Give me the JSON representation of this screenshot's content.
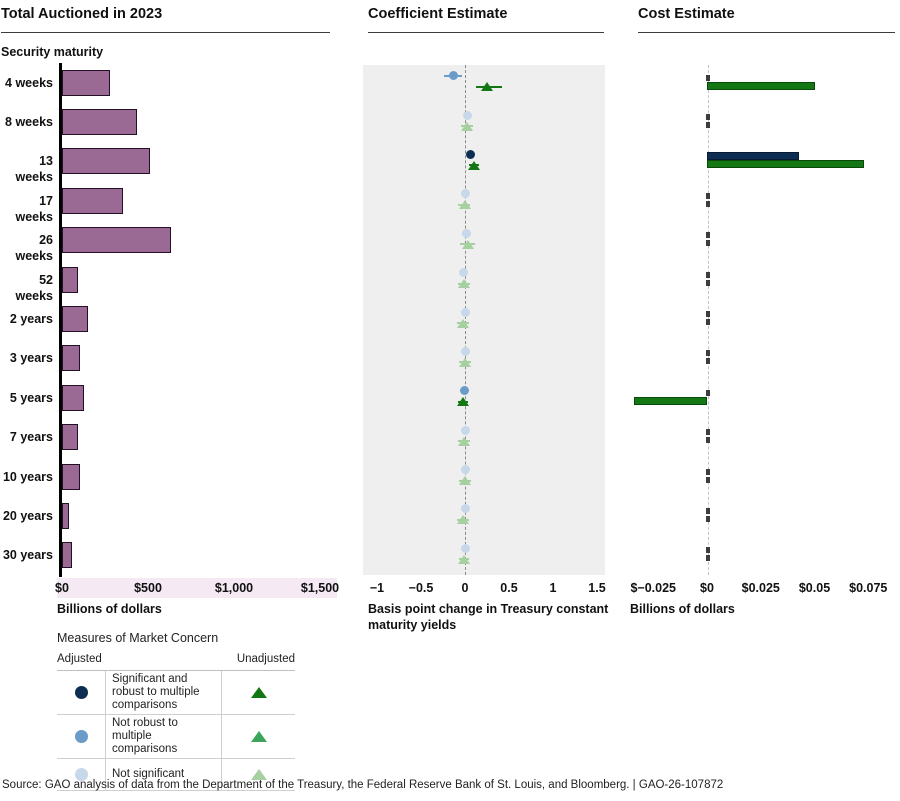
{
  "source": "Source: GAO analysis of data from the Department of the Treasury, the Federal Reserve Bank of St. Louis, and Bloomberg.  |  GAO-26-107872",
  "colors": {
    "bar_purple": "#9a6a94",
    "bar_purple_border": "#241026",
    "axis_band_pink": "#f5e9f3",
    "plot_bg": "#efefef",
    "zero_line_gray": "#8a8a8a",
    "zero_line_light": "#c2c2c2",
    "zero_tick_dark": "#3d3d3d",
    "adjusted_significant": "#0d2d52",
    "adjusted_not_robust": "#6b9bc8",
    "adjusted_not_significant": "#c6d8ea",
    "unadjusted_significant": "#137713",
    "unadjusted_not_robust": "#3ba55b",
    "unadjusted_not_significant": "#a6d0a0"
  },
  "legend": {
    "title": "Measures of Market Concern",
    "col_adjusted": "Adjusted",
    "col_unadjusted": "Unadjusted",
    "rows": [
      {
        "label": "Significant and robust to multiple comparisons",
        "level": "significant"
      },
      {
        "label": "Not robust to multiple comparisons",
        "level": "not-robust"
      },
      {
        "label": "Not significant",
        "level": "not-significant"
      }
    ]
  },
  "chart_data": [
    {
      "type": "bar",
      "orientation": "horizontal",
      "title": "Total Auctioned in 2023",
      "ylabel": "Security maturity",
      "xlabel": "Billions of dollars",
      "categories": [
        "4 weeks",
        "8 weeks",
        "13 weeks",
        "17 weeks",
        "26 weeks",
        "52 weeks",
        "2 years",
        "3 years",
        "5 years",
        "7 years",
        "10 years",
        "20 years",
        "30 years"
      ],
      "values": [
        280,
        435,
        510,
        355,
        635,
        95,
        150,
        105,
        130,
        95,
        105,
        40,
        60
      ],
      "xlim": [
        0,
        1500
      ],
      "x_ticks": [
        0,
        500,
        1000,
        1500
      ],
      "x_tick_labels": [
        "$0",
        "$500",
        "$1,000",
        "$1,500"
      ],
      "grid": false
    },
    {
      "type": "scatter",
      "title": "Coefficient Estimate",
      "xlabel": "Basis point change in Treasury constant maturity yields",
      "categories": [
        "4 weeks",
        "8 weeks",
        "13 weeks",
        "17 weeks",
        "26 weeks",
        "52 weeks",
        "2 years",
        "3 years",
        "5 years",
        "7 years",
        "10 years",
        "20 years",
        "30 years"
      ],
      "xlim": [
        -1.15,
        1.6
      ],
      "x_ticks": [
        -1,
        -0.5,
        0,
        0.5,
        1,
        1.5
      ],
      "x_tick_labels": [
        "−1",
        "−0.5",
        "0",
        "0.5",
        "1",
        "1.5"
      ],
      "zero_reference_line": true,
      "series": [
        {
          "name": "Adjusted",
          "marker": "circle",
          "points": [
            {
              "value": -0.13,
              "lo": -0.24,
              "hi": -0.03,
              "significance": "not-robust"
            },
            {
              "value": 0.03,
              "lo": -0.01,
              "hi": 0.07,
              "significance": "not-significant"
            },
            {
              "value": 0.06,
              "lo": 0.03,
              "hi": 0.09,
              "significance": "significant"
            },
            {
              "value": 0.01,
              "lo": -0.03,
              "hi": 0.05,
              "significance": "not-significant"
            },
            {
              "value": 0.02,
              "lo": -0.02,
              "hi": 0.06,
              "significance": "not-significant"
            },
            {
              "value": -0.02,
              "lo": -0.06,
              "hi": 0.02,
              "significance": "not-significant"
            },
            {
              "value": 0.0,
              "lo": -0.04,
              "hi": 0.04,
              "significance": "not-significant"
            },
            {
              "value": 0.0,
              "lo": -0.03,
              "hi": 0.03,
              "significance": "not-significant"
            },
            {
              "value": -0.01,
              "lo": -0.05,
              "hi": 0.03,
              "significance": "not-robust"
            },
            {
              "value": 0.0,
              "lo": -0.04,
              "hi": 0.04,
              "significance": "not-significant"
            },
            {
              "value": 0.01,
              "lo": -0.03,
              "hi": 0.05,
              "significance": "not-significant"
            },
            {
              "value": 0.0,
              "lo": -0.04,
              "hi": 0.04,
              "significance": "not-significant"
            },
            {
              "value": 0.0,
              "lo": -0.03,
              "hi": 0.03,
              "significance": "not-significant"
            }
          ]
        },
        {
          "name": "Unadjusted",
          "marker": "triangle",
          "points": [
            {
              "value": 0.25,
              "lo": 0.12,
              "hi": 0.42,
              "significance": "significant"
            },
            {
              "value": 0.02,
              "lo": -0.05,
              "hi": 0.09,
              "significance": "not-significant"
            },
            {
              "value": 0.1,
              "lo": 0.04,
              "hi": 0.16,
              "significance": "significant"
            },
            {
              "value": 0.0,
              "lo": -0.08,
              "hi": 0.06,
              "significance": "not-significant"
            },
            {
              "value": 0.03,
              "lo": -0.06,
              "hi": 0.11,
              "significance": "not-significant"
            },
            {
              "value": -0.01,
              "lo": -0.08,
              "hi": 0.06,
              "significance": "not-significant"
            },
            {
              "value": -0.02,
              "lo": -0.09,
              "hi": 0.05,
              "significance": "not-significant"
            },
            {
              "value": 0.0,
              "lo": -0.07,
              "hi": 0.07,
              "significance": "not-significant"
            },
            {
              "value": -0.02,
              "lo": -0.08,
              "hi": 0.03,
              "significance": "significant"
            },
            {
              "value": -0.01,
              "lo": -0.08,
              "hi": 0.06,
              "significance": "not-significant"
            },
            {
              "value": 0.0,
              "lo": -0.07,
              "hi": 0.07,
              "significance": "not-significant"
            },
            {
              "value": -0.02,
              "lo": -0.09,
              "hi": 0.05,
              "significance": "not-significant"
            },
            {
              "value": -0.01,
              "lo": -0.07,
              "hi": 0.05,
              "significance": "not-significant"
            }
          ]
        }
      ]
    },
    {
      "type": "bar",
      "orientation": "horizontal",
      "title": "Cost Estimate",
      "xlabel": "Billions of dollars",
      "categories": [
        "4 weeks",
        "8 weeks",
        "13 weeks",
        "17 weeks",
        "26 weeks",
        "52 weeks",
        "2 years",
        "3 years",
        "5 years",
        "7 years",
        "10 years",
        "20 years",
        "30 years"
      ],
      "xlim": [
        -0.0375,
        0.09
      ],
      "x_ticks": [
        -0.025,
        0,
        0.025,
        0.05,
        0.075
      ],
      "x_tick_labels": [
        "$−0.025",
        "$0",
        "$0.025",
        "$0.05",
        "$0.075"
      ],
      "zero_reference_line": true,
      "series": [
        {
          "name": "Adjusted",
          "values": [
            0,
            0,
            0.043,
            0,
            0,
            0,
            0,
            0,
            0,
            0,
            0,
            0,
            0
          ]
        },
        {
          "name": "Unadjusted",
          "values": [
            0.05,
            0,
            0.073,
            0,
            0,
            0,
            0,
            0,
            -0.034,
            0,
            0,
            0,
            0
          ]
        }
      ]
    }
  ]
}
